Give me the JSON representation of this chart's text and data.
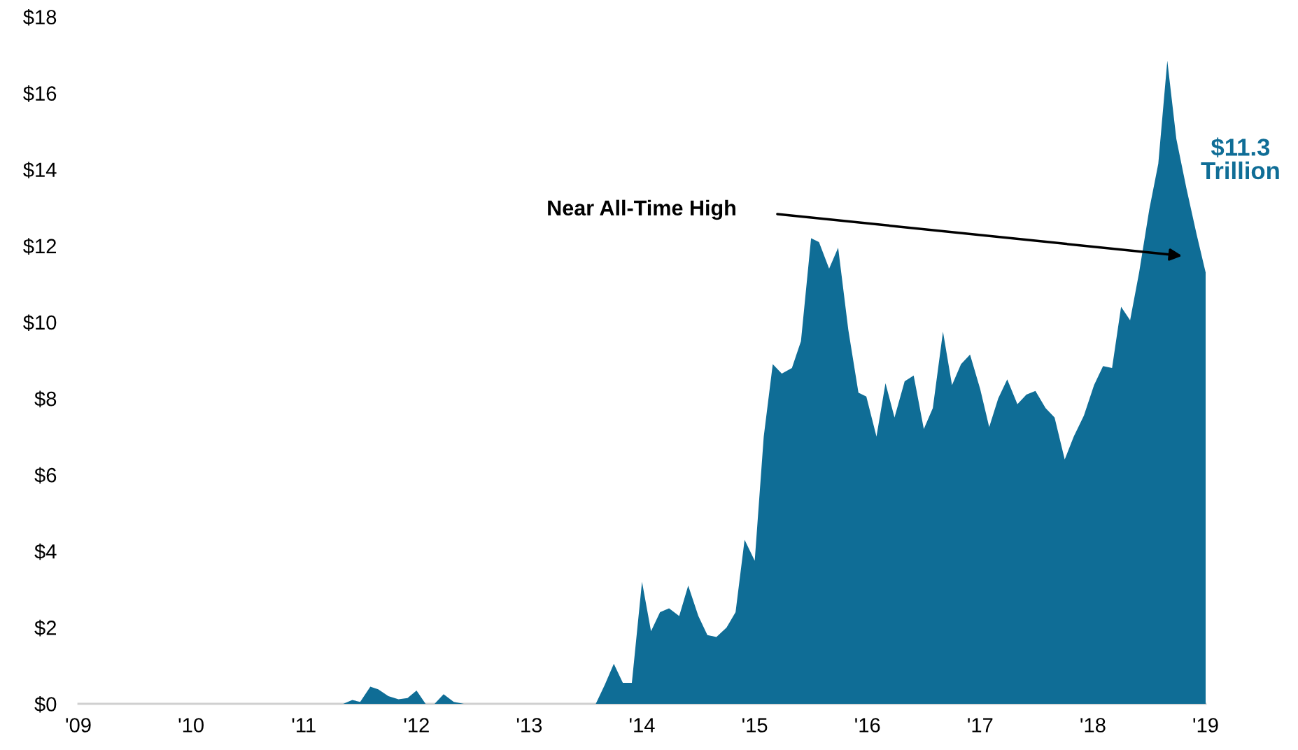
{
  "chart_data": {
    "type": "area",
    "x": [
      2009.0,
      2011.35,
      2011.43,
      2011.5,
      2011.59,
      2011.66,
      2011.75,
      2011.84,
      2011.92,
      2012.0,
      2012.08,
      2012.16,
      2012.24,
      2012.33,
      2012.42,
      2013.59,
      2013.67,
      2013.75,
      2013.83,
      2013.91,
      2014.0,
      2014.08,
      2014.16,
      2014.24,
      2014.33,
      2014.41,
      2014.5,
      2014.58,
      2014.66,
      2014.75,
      2014.83,
      2014.91,
      2015.0,
      2015.08,
      2015.16,
      2015.24,
      2015.33,
      2015.41,
      2015.5,
      2015.57,
      2015.66,
      2015.74,
      2015.83,
      2015.92,
      2015.99,
      2016.08,
      2016.16,
      2016.24,
      2016.33,
      2016.41,
      2016.5,
      2016.58,
      2016.67,
      2016.75,
      2016.83,
      2016.91,
      2017.0,
      2017.08,
      2017.16,
      2017.24,
      2017.33,
      2017.41,
      2017.49,
      2017.58,
      2017.66,
      2017.75,
      2017.83,
      2017.92,
      2018.01,
      2018.09,
      2018.17,
      2018.25,
      2018.33,
      2018.41,
      2018.5,
      2018.58,
      2018.66,
      2018.74,
      2018.83,
      2018.92,
      2019.0
    ],
    "series": [
      {
        "color": "#0f6d96",
        "values": [
          0,
          0,
          0.1,
          0.05,
          0.45,
          0.38,
          0.2,
          0.12,
          0.15,
          0.35,
          0,
          0,
          0.25,
          0.05,
          0,
          0,
          0.5,
          1.05,
          0.55,
          0.55,
          3.2,
          1.9,
          2.4,
          2.5,
          2.3,
          3.1,
          2.3,
          1.8,
          1.75,
          2.0,
          2.4,
          4.3,
          3.75,
          7.0,
          8.9,
          8.65,
          8.8,
          9.5,
          12.2,
          12.1,
          11.4,
          11.95,
          9.8,
          8.15,
          8.05,
          7.0,
          8.4,
          7.5,
          8.45,
          8.6,
          7.2,
          7.75,
          9.75,
          8.35,
          8.9,
          9.15,
          8.25,
          7.25,
          8.0,
          8.5,
          7.85,
          8.1,
          8.2,
          7.75,
          7.5,
          6.4,
          7.0,
          7.55,
          8.35,
          8.85,
          8.8,
          10.4,
          10.05,
          11.3,
          12.95,
          14.15,
          16.85,
          14.8,
          13.5,
          12.3,
          11.3
        ]
      }
    ],
    "xlim": [
      2009,
      2019
    ],
    "xticks": [
      {
        "value": 2009,
        "label": "'09"
      },
      {
        "value": 2010,
        "label": "'10"
      },
      {
        "value": 2011,
        "label": "'11"
      },
      {
        "value": 2012,
        "label": "'12"
      },
      {
        "value": 2013,
        "label": "'13"
      },
      {
        "value": 2014,
        "label": "'14"
      },
      {
        "value": 2015,
        "label": "'15"
      },
      {
        "value": 2016,
        "label": "'16"
      },
      {
        "value": 2017,
        "label": "'17"
      },
      {
        "value": 2018,
        "label": "'18"
      },
      {
        "value": 2019,
        "label": "'19"
      }
    ],
    "ylim": [
      0,
      18
    ],
    "yticks": [
      {
        "value": 0,
        "label": "$0"
      },
      {
        "value": 2,
        "label": "$2"
      },
      {
        "value": 4,
        "label": "$4"
      },
      {
        "value": 6,
        "label": "$6"
      },
      {
        "value": 8,
        "label": "$8"
      },
      {
        "value": 10,
        "label": "$10"
      },
      {
        "value": 12,
        "label": "$12"
      },
      {
        "value": 14,
        "label": "$14"
      },
      {
        "value": 16,
        "label": "$16"
      },
      {
        "value": 18,
        "label": "$18"
      }
    ],
    "annotations": [
      "Near All-Time High",
      "$11.3\nTrillion"
    ],
    "grid": false,
    "legend": false
  }
}
